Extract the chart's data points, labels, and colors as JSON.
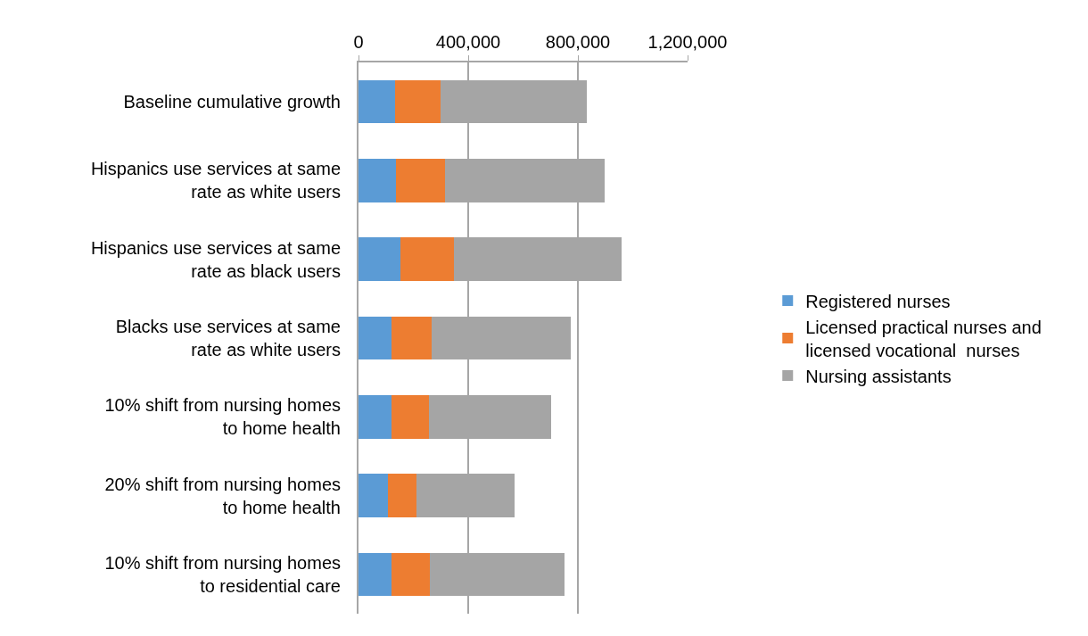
{
  "chart_data": {
    "type": "bar",
    "orientation": "horizontal",
    "stacked": true,
    "categories": [
      "Baseline cumulative growth",
      "Hispanics use services at same rate as white users",
      "Hispanics use services at same rate as black users",
      "Blacks use services at same rate as white users",
      "10% shift from nursing homes to home health",
      "20% shift from nursing homes to home health",
      "10% shift from nursing homes to residential care"
    ],
    "series": [
      {
        "name": "Registered nurses",
        "color": "#5b9bd5",
        "values": [
          134000,
          138000,
          152000,
          119000,
          120000,
          107000,
          121000
        ]
      },
      {
        "name": "Licensed practical nurses and licensed vocational  nurses",
        "color": "#ed7d31",
        "values": [
          166000,
          176000,
          195000,
          149000,
          137000,
          105000,
          140000
        ]
      },
      {
        "name": "Nursing assistants",
        "color": "#a5a5a5",
        "values": [
          534000,
          582000,
          611000,
          506000,
          444000,
          358000,
          491000
        ]
      }
    ],
    "xlim": [
      0,
      1200000
    ],
    "xticks": [
      {
        "value": 0,
        "label": "0"
      },
      {
        "value": 400000,
        "label": "400,000"
      },
      {
        "value": 800000,
        "label": "800,000"
      },
      {
        "value": 1200000,
        "label": "1,200,000"
      }
    ],
    "grid": "x",
    "legend": "right"
  }
}
